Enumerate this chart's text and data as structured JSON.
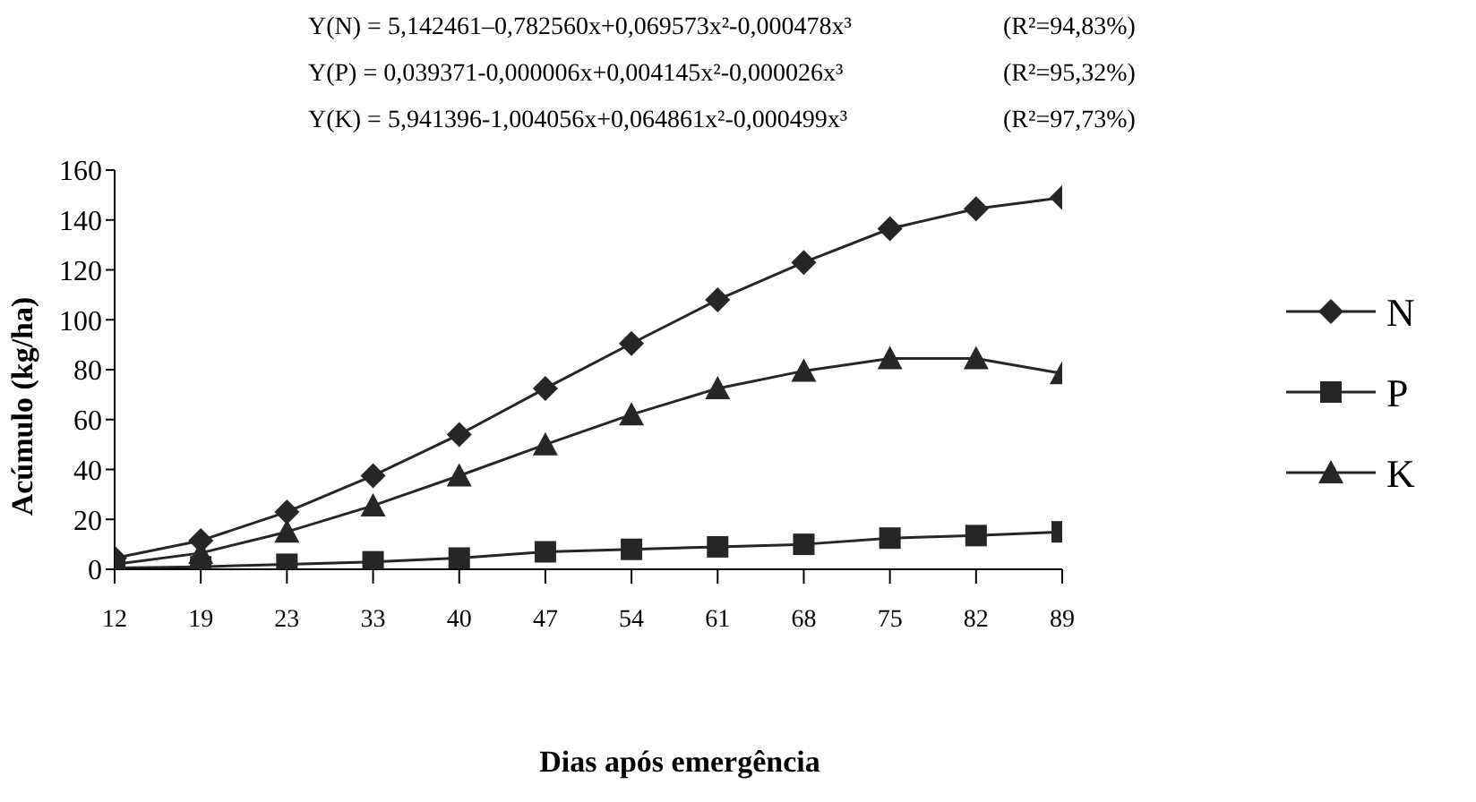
{
  "chart_data": {
    "type": "line",
    "xlabel": "Dias após emergência",
    "ylabel": "Acúmulo (kg/ha)",
    "categories": [
      "12",
      "19",
      "23",
      "33",
      "40",
      "47",
      "54",
      "61",
      "68",
      "75",
      "82",
      "89"
    ],
    "series": [
      {
        "name": "N",
        "color": "#262626",
        "marker": "diamond",
        "values": [
          4.5,
          11.5,
          23,
          37.5,
          54,
          72.5,
          90.5,
          108,
          123,
          136.5,
          144.5,
          149
        ]
      },
      {
        "name": "P",
        "color": "#262626",
        "marker": "square",
        "values": [
          0.5,
          1,
          2,
          3,
          4.5,
          7,
          8,
          9,
          10,
          12.5,
          13.5,
          15
        ]
      },
      {
        "name": "K",
        "color": "#262626",
        "marker": "triangle",
        "values": [
          2,
          6.5,
          15,
          25.5,
          37.5,
          50,
          62,
          72.5,
          79.5,
          84.5,
          84.5,
          78.5
        ]
      }
    ],
    "ylim": [
      0,
      160
    ],
    "yticks": [
      0,
      20,
      40,
      60,
      80,
      100,
      120,
      140,
      160
    ],
    "grid": false,
    "legend": "right",
    "line_style": "solid",
    "annotations": [
      "Y(N) = 5,142461–0,782560x+0,069573x²-0,000478x³",
      "(R²=94,83%)",
      "Y(P) = 0,039371-0,000006x+0,004145x²-0,000026x³",
      "(R²=95,32%)",
      "Y(K) = 5,941396-1,004056x+0,064861x²-0,000499x³",
      "(R²=97,73%)"
    ]
  }
}
